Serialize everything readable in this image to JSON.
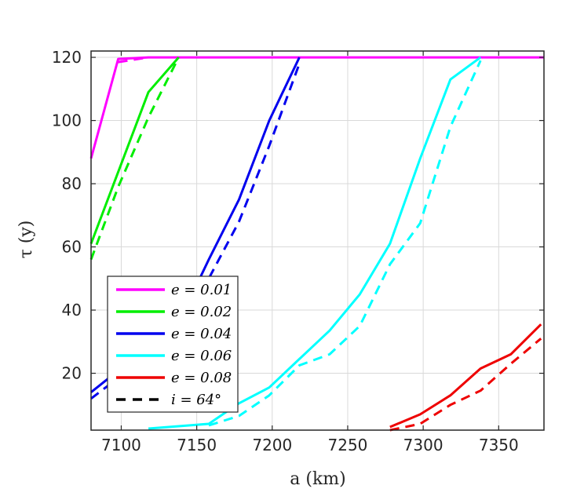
{
  "chart_data": {
    "type": "line",
    "xlabel": "a (km)",
    "ylabel": "τ (y)",
    "xlim": [
      7080,
      7380
    ],
    "ylim": [
      2,
      122
    ],
    "xticks": [
      7100,
      7150,
      7200,
      7250,
      7300,
      7350
    ],
    "yticks": [
      20,
      40,
      60,
      80,
      100,
      120
    ],
    "grid": true,
    "legend_position": "lower-left",
    "series": [
      {
        "name": "e = 0.01",
        "style": "solid",
        "color": "#ff00ff",
        "x": [
          7080,
          7098,
          7118,
          7380
        ],
        "y": [
          88,
          119.5,
          120,
          120
        ]
      },
      {
        "name": "",
        "style": "dashed",
        "color": "#ff00ff",
        "x": [
          7098,
          7118
        ],
        "y": [
          118.5,
          120
        ]
      },
      {
        "name": "e = 0.02",
        "style": "solid",
        "color": "#00ee00",
        "x": [
          7080,
          7118,
          7138
        ],
        "y": [
          61,
          109,
          120
        ]
      },
      {
        "name": "",
        "style": "dashed",
        "color": "#00ee00",
        "x": [
          7080,
          7098,
          7118,
          7138
        ],
        "y": [
          56,
          79,
          101,
          120
        ]
      },
      {
        "name": "e = 0.04",
        "style": "solid",
        "color": "#0000ee",
        "x": [
          7080,
          7138,
          7158,
          7178,
          7198,
          7218
        ],
        "y": [
          14,
          36,
          56,
          75,
          100,
          120
        ]
      },
      {
        "name": "",
        "style": "dashed",
        "color": "#0000ee",
        "x": [
          7080,
          7138,
          7158,
          7178,
          7198,
          7218
        ],
        "y": [
          12,
          33,
          50,
          68,
          92,
          118
        ]
      },
      {
        "name": "e = 0.06",
        "style": "solid",
        "color": "#00ffff",
        "x": [
          7118,
          7158,
          7178,
          7198,
          7218,
          7238,
          7258,
          7278,
          7298,
          7318,
          7338
        ],
        "y": [
          2.5,
          4,
          10.5,
          15.5,
          24.5,
          33.5,
          45,
          61,
          88,
          113,
          120
        ]
      },
      {
        "name": "",
        "style": "dashed",
        "color": "#00ffff",
        "x": [
          7158,
          7178,
          7198,
          7218,
          7238,
          7258,
          7278,
          7298,
          7318,
          7338
        ],
        "y": [
          3.5,
          6.5,
          13,
          22.5,
          26,
          35,
          54.5,
          67.5,
          98,
          119
        ]
      },
      {
        "name": "e = 0.08",
        "style": "solid",
        "color": "#ee0000",
        "x": [
          7278,
          7298,
          7318,
          7338,
          7358,
          7378
        ],
        "y": [
          3,
          7,
          13,
          21.5,
          26,
          35.5
        ]
      },
      {
        "name": "",
        "style": "dashed",
        "color": "#ee0000",
        "x": [
          7278,
          7298,
          7318,
          7338,
          7358,
          7378
        ],
        "y": [
          2,
          4,
          10,
          14.5,
          23,
          31
        ]
      }
    ],
    "legend": [
      {
        "label": "e = 0.01",
        "color": "#ff00ff",
        "style": "solid"
      },
      {
        "label": "e = 0.02",
        "color": "#00ee00",
        "style": "solid"
      },
      {
        "label": "e = 0.04",
        "color": "#0000ee",
        "style": "solid"
      },
      {
        "label": "e = 0.06",
        "color": "#00ffff",
        "style": "solid"
      },
      {
        "label": "e = 0.08",
        "color": "#ee0000",
        "style": "solid"
      },
      {
        "label": "i = 64°",
        "color": "#000000",
        "style": "dashed"
      }
    ]
  }
}
